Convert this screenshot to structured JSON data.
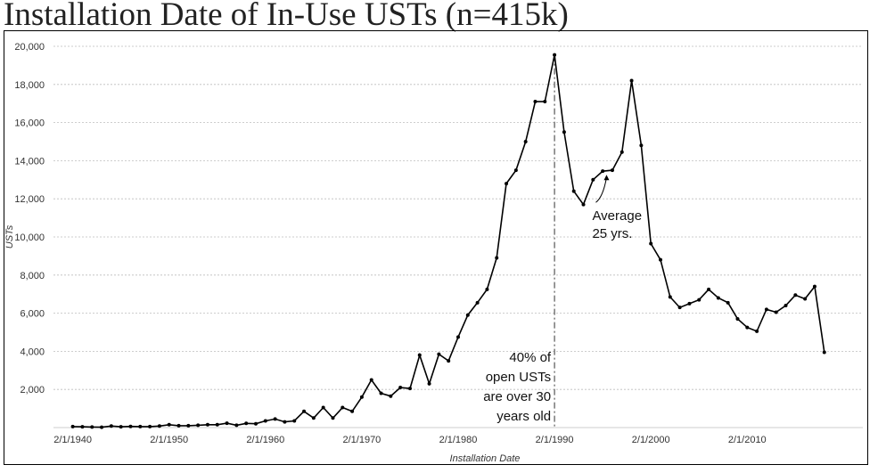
{
  "title": "Installation Date of In-Use USTs (n=415k)",
  "chart_data": {
    "type": "line",
    "title": "Installation Date of In-Use USTs (n=415k)",
    "xlabel": "Installation Date",
    "ylabel": "USTs",
    "x_tick_labels": [
      "2/1/1940",
      "2/1/1950",
      "2/1/1960",
      "2/1/1970",
      "2/1/1980",
      "2/1/1990",
      "2/1/2000",
      "2/1/2010"
    ],
    "x_tick_years": [
      1940,
      1950,
      1960,
      1970,
      1980,
      1990,
      2000,
      2010
    ],
    "xlim": [
      1938,
      2022
    ],
    "ylim": [
      0,
      20000
    ],
    "y_ticks": [
      2000,
      4000,
      6000,
      8000,
      10000,
      12000,
      14000,
      16000,
      18000,
      20000
    ],
    "y_tick_labels": [
      "2,000",
      "4,000",
      "6,000",
      "8,000",
      "10,000",
      "12,000",
      "14,000",
      "16,000",
      "18,000",
      "20,000"
    ],
    "grid": true,
    "legend": "none",
    "line_color": "#000000",
    "grid_color": "#bdbdbd",
    "marker_line_year": 1990,
    "x": [
      1940,
      1941,
      1942,
      1943,
      1944,
      1945,
      1946,
      1947,
      1948,
      1949,
      1950,
      1951,
      1952,
      1953,
      1954,
      1955,
      1956,
      1957,
      1958,
      1959,
      1960,
      1961,
      1962,
      1963,
      1964,
      1965,
      1966,
      1967,
      1968,
      1969,
      1970,
      1971,
      1972,
      1973,
      1974,
      1975,
      1976,
      1977,
      1978,
      1979,
      1980,
      1981,
      1982,
      1983,
      1984,
      1985,
      1986,
      1987,
      1988,
      1989,
      1990,
      1991,
      1992,
      1993,
      1994,
      1995,
      1996,
      1997,
      1998,
      1999,
      2000,
      2001,
      2002,
      2003,
      2004,
      2005,
      2006,
      2007,
      2008,
      2009,
      2010,
      2011,
      2012,
      2013,
      2014,
      2015,
      2016,
      2017,
      2018
    ],
    "values": [
      50,
      40,
      30,
      20,
      80,
      40,
      60,
      50,
      50,
      80,
      150,
      100,
      100,
      120,
      150,
      150,
      230,
      120,
      220,
      200,
      350,
      450,
      300,
      350,
      850,
      500,
      1050,
      500,
      1050,
      850,
      1600,
      2500,
      1800,
      1650,
      2100,
      2050,
      3800,
      2300,
      3850,
      3500,
      4750,
      5900,
      6550,
      7250,
      8900,
      12800,
      13500,
      15000,
      17100,
      17100,
      19550,
      15500,
      12400,
      11700,
      13000,
      13450,
      13500,
      14450,
      18200,
      14800,
      9650,
      8800,
      6850,
      6300,
      6500,
      6700,
      7250,
      6800,
      6550,
      5700,
      5250,
      5050,
      6200,
      6050,
      6400,
      6950,
      6750,
      7400,
      3950
    ],
    "annotations": [
      {
        "lines": [
          "Average",
          "25 yrs."
        ],
        "year": 1995.4,
        "value": 13400
      },
      {
        "lines": [
          "40% of",
          "open USTs",
          "are over 30",
          "years old"
        ],
        "year": 1990,
        "value": 4000
      }
    ]
  }
}
